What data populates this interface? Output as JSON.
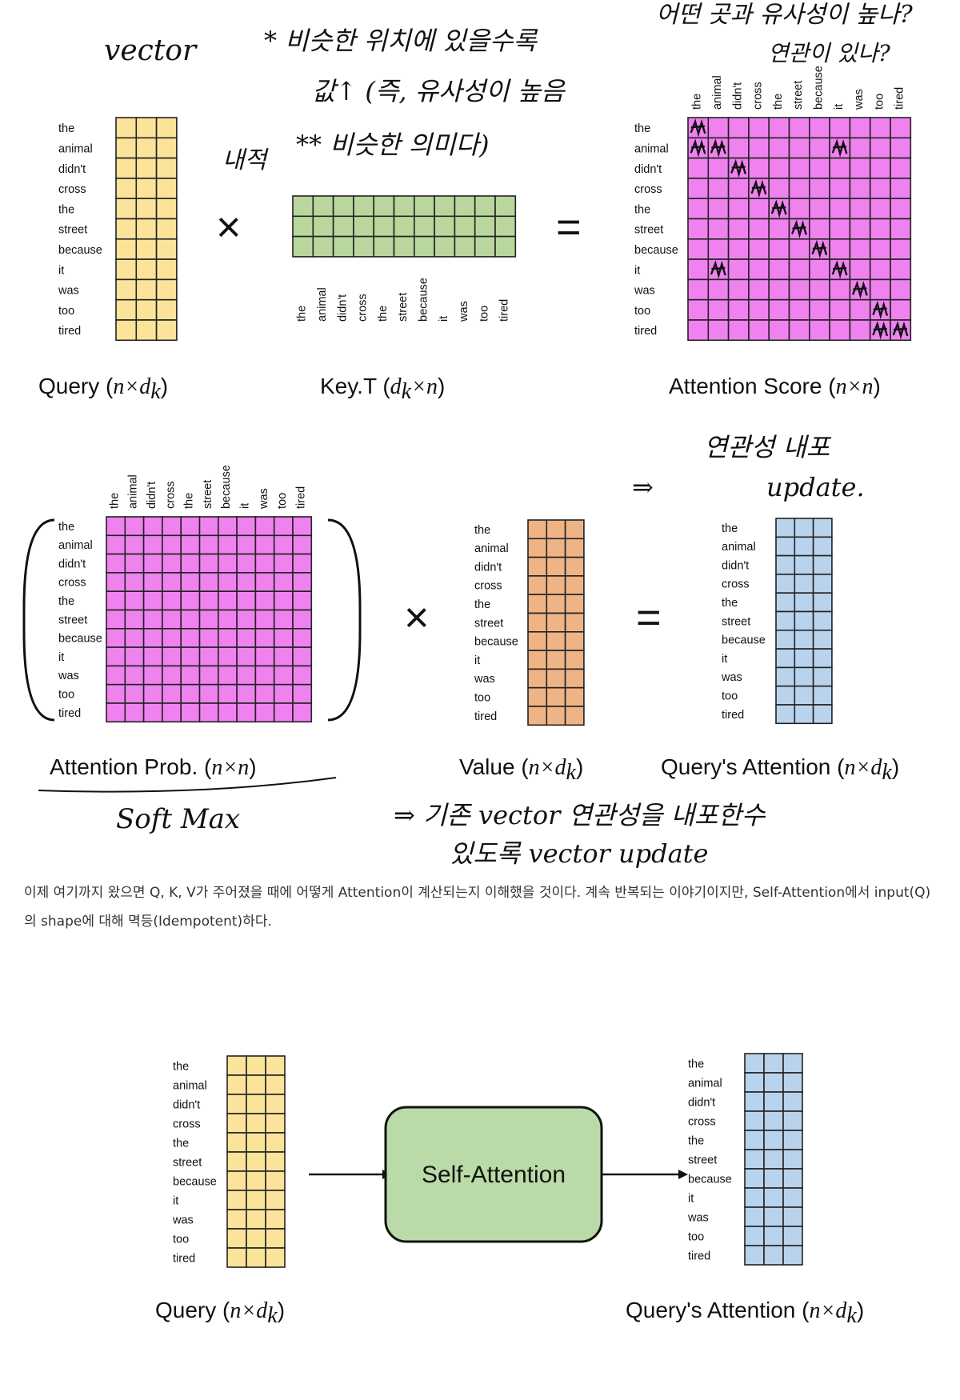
{
  "tokens": [
    "the",
    "animal",
    "didn't",
    "cross",
    "the",
    "street",
    "because",
    "it",
    "was",
    "too",
    "tired"
  ],
  "colors": {
    "query": "#fbe39a",
    "key": "#b9d79c",
    "score": "#ef82ef",
    "value": "#eeb486",
    "output": "#bad3ec",
    "self_attention_box": "#badba7"
  },
  "panel_titles": {
    "query": {
      "text": "Query (",
      "math": "n×d",
      "sub": "k",
      "end": ")"
    },
    "key": {
      "text": "Key.T (",
      "math": "d",
      "sub": "k",
      "math2": "×n",
      "end": ")"
    },
    "score": {
      "text": "Attention Score (",
      "math": "n×n",
      "end": ")"
    },
    "prob": {
      "text": "Attention Prob. (",
      "math": "n×n",
      "end": ")"
    },
    "value": {
      "text": "Value (",
      "math": "n×d",
      "sub": "k",
      "end": ")"
    },
    "output": {
      "text": "Query's Attention (",
      "math": "n×d",
      "sub": "k",
      "end": ")"
    },
    "query2": {
      "text": "Query (",
      "math": "n×d",
      "sub": "k",
      "end": ")"
    },
    "output2": {
      "text": "Query's Attention (",
      "math": "n×d",
      "sub": "k",
      "end": ")"
    }
  },
  "operators": {
    "times": "×",
    "equals": "="
  },
  "self_attention_label": "Self-Attention",
  "handwritten_notes": {
    "vector": "vector",
    "inner_product": "내적",
    "similar_position_1": "* 비슷한 위치에 있을수록",
    "similar_position_2": "값↑ (즉, 유사성이 높음",
    "similar_position_3": "** 비슷한 의미다)",
    "which_similar_1": "어떤 곳과 유사성이 높나?",
    "which_similar_2": "연관이 있나?",
    "relation_1": "연관성 내포",
    "relation_2": "update.",
    "softmax": "Soft Max",
    "existing_1": "⇒ 기존  vector  연관성을  내포한수",
    "existing_2": "있도록  vector  update"
  },
  "paragraph": "이제 여기까지 왔으면 Q, K, V가 주어졌을 때에 어떻게 Attention이 계산되는지 이해했을 것이다. 계속 반복되는 이야기이지만, Self-Attention에서 input(Q)의 shape에 대해 멱등(Idempotent)하다."
}
